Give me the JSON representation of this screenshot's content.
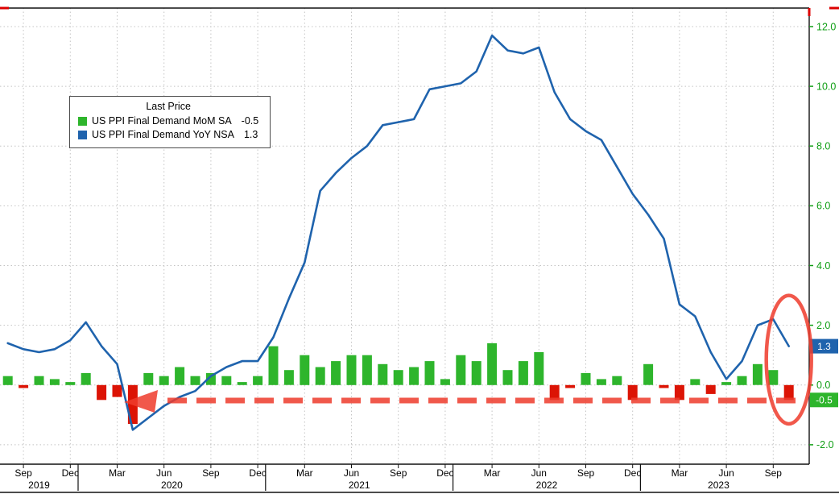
{
  "chart_data": {
    "type": "combo",
    "title": "US PPI Final Demand",
    "grid": true,
    "ylim": [
      -2.65,
      12.62
    ],
    "x": [
      "2019-08",
      "2019-09",
      "2019-10",
      "2019-11",
      "2019-12",
      "2020-01",
      "2020-02",
      "2020-03",
      "2020-04",
      "2020-05",
      "2020-06",
      "2020-07",
      "2020-08",
      "2020-09",
      "2020-10",
      "2020-11",
      "2020-12",
      "2021-01",
      "2021-02",
      "2021-03",
      "2021-04",
      "2021-05",
      "2021-06",
      "2021-07",
      "2021-08",
      "2021-09",
      "2021-10",
      "2021-11",
      "2021-12",
      "2022-01",
      "2022-02",
      "2022-03",
      "2022-04",
      "2022-05",
      "2022-06",
      "2022-07",
      "2022-08",
      "2022-09",
      "2022-10",
      "2022-11",
      "2022-12",
      "2023-01",
      "2023-02",
      "2023-03",
      "2023-04",
      "2023-05",
      "2023-06",
      "2023-07",
      "2023-08",
      "2023-09",
      "2023-10"
    ],
    "series": [
      {
        "name": "US PPI Final Demand MoM SA",
        "type": "bar",
        "last_value": -0.5,
        "color_positive": "#2eb52c",
        "color_negative": "#dc1405",
        "values": [
          0.3,
          -0.1,
          0.3,
          0.2,
          0.1,
          0.4,
          -0.5,
          -0.4,
          -1.3,
          0.4,
          0.3,
          0.6,
          0.3,
          0.4,
          0.3,
          0.1,
          0.3,
          1.3,
          0.5,
          1.0,
          0.6,
          0.8,
          1.0,
          1.0,
          0.7,
          0.5,
          0.6,
          0.8,
          0.2,
          1.0,
          0.8,
          1.4,
          0.5,
          0.8,
          1.1,
          -0.5,
          -0.1,
          0.4,
          0.2,
          0.3,
          -0.5,
          0.7,
          -0.1,
          -0.5,
          0.2,
          -0.3,
          0.1,
          0.3,
          0.7,
          0.5,
          -0.5
        ]
      },
      {
        "name": "US PPI Final Demand YoY NSA",
        "type": "line",
        "last_value": 1.3,
        "color": "#1f63ad",
        "values": [
          1.4,
          1.2,
          1.1,
          1.2,
          1.5,
          2.1,
          1.3,
          0.7,
          -1.5,
          -1.1,
          -0.7,
          -0.4,
          -0.2,
          0.3,
          0.6,
          0.8,
          0.8,
          1.6,
          2.9,
          4.1,
          6.5,
          7.1,
          7.6,
          8.0,
          8.7,
          8.8,
          8.9,
          9.9,
          10.0,
          10.1,
          10.5,
          11.7,
          11.2,
          11.1,
          11.3,
          9.8,
          8.9,
          8.5,
          8.2,
          7.3,
          6.4,
          5.7,
          4.9,
          2.7,
          2.3,
          1.1,
          0.2,
          0.8,
          2.0,
          2.2,
          1.3
        ]
      }
    ],
    "y_ticks": [
      {
        "value": -2,
        "label": "-2.0"
      },
      {
        "value": 0,
        "label": "0.0"
      },
      {
        "value": 2,
        "label": "2.0"
      },
      {
        "value": 4,
        "label": "4.0"
      },
      {
        "value": 6,
        "label": "6.0"
      },
      {
        "value": 8,
        "label": "8.0"
      },
      {
        "value": 10,
        "label": "10.0"
      },
      {
        "value": 12,
        "label": "12.0"
      }
    ],
    "x_ticks": [
      {
        "index": 1,
        "label": "Sep"
      },
      {
        "index": 4,
        "label": "Dec"
      },
      {
        "index": 7,
        "label": "Mar"
      },
      {
        "index": 10,
        "label": "Jun"
      },
      {
        "index": 13,
        "label": "Sep"
      },
      {
        "index": 16,
        "label": "Dec"
      },
      {
        "index": 19,
        "label": "Mar"
      },
      {
        "index": 22,
        "label": "Jun"
      },
      {
        "index": 25,
        "label": "Sep"
      },
      {
        "index": 28,
        "label": "Dec"
      },
      {
        "index": 31,
        "label": "Mar"
      },
      {
        "index": 34,
        "label": "Jun"
      },
      {
        "index": 37,
        "label": "Sep"
      },
      {
        "index": 40,
        "label": "Dec"
      },
      {
        "index": 43,
        "label": "Mar"
      },
      {
        "index": 46,
        "label": "Jun"
      },
      {
        "index": 49,
        "label": "Sep"
      }
    ],
    "year_sections": [
      {
        "label": "2019",
        "from": 0,
        "to": 5
      },
      {
        "label": "2020",
        "from": 5,
        "to": 17
      },
      {
        "label": "2021",
        "from": 17,
        "to": 29
      },
      {
        "label": "2022",
        "from": 29,
        "to": 41
      },
      {
        "label": "2023",
        "from": 41,
        "to": 51
      }
    ],
    "axis_text_color": "#0f9e14",
    "grid_color": "#c4c4c4",
    "legend": {
      "title": "Last Price",
      "position": "top-left",
      "entries": [
        {
          "label": "US PPI Final Demand MoM SA",
          "value": "-0.5",
          "swatch": "#2eb52c"
        },
        {
          "label": "US PPI Final Demand YoY NSA",
          "value": "1.3",
          "swatch": "#1f63ad"
        }
      ]
    },
    "last_price_tags": [
      {
        "label": "1.3",
        "value": 1.3,
        "bg": "#1f63ad",
        "series": "yoy"
      },
      {
        "label": "-0.5",
        "value": -0.5,
        "bg": "#2eb52c",
        "series": "mom"
      }
    ],
    "annotations": [
      {
        "type": "dashed-arrow",
        "direction": "left",
        "y_value": -0.52,
        "color": "#ee3b2c"
      },
      {
        "type": "ellipse-highlight",
        "target": "latest-points",
        "color": "#ee3b2c"
      }
    ]
  }
}
